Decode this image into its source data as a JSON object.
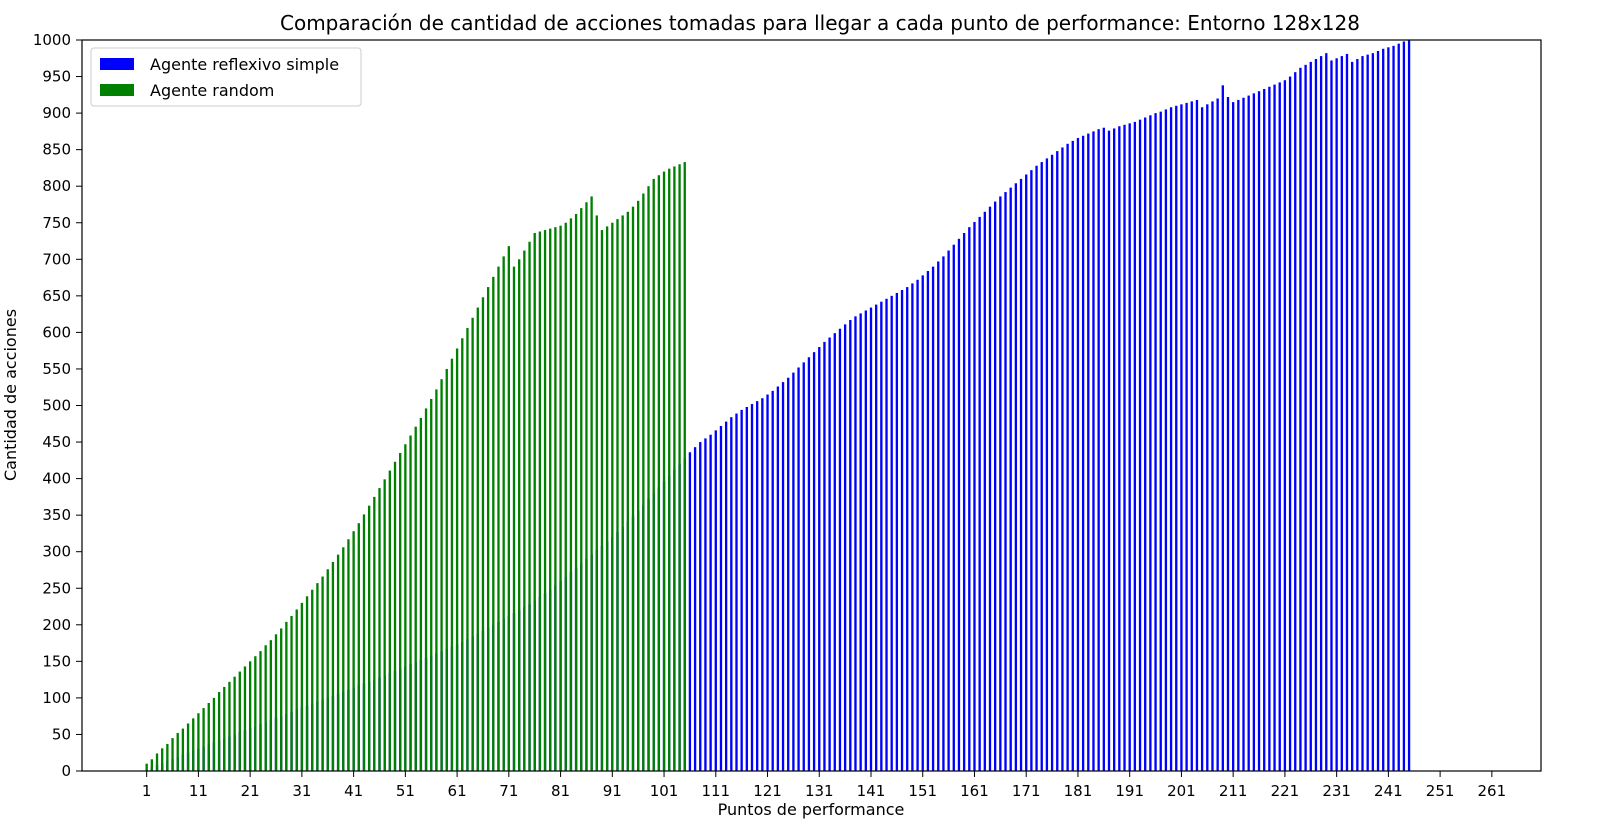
{
  "chart_data": {
    "type": "bar",
    "title": "Comparación de cantidad de acciones tomadas para llegar a cada punto de performance: Entorno 128x128",
    "xlabel": "Puntos de performance",
    "ylabel": "Cantidad de acciones",
    "xlim": [
      -11.5,
      270.5
    ],
    "ylim": [
      0,
      1000
    ],
    "x_ticks": [
      1,
      11,
      21,
      31,
      41,
      51,
      61,
      71,
      81,
      91,
      101,
      111,
      121,
      131,
      141,
      151,
      161,
      171,
      181,
      191,
      201,
      211,
      221,
      231,
      241,
      251,
      261
    ],
    "y_ticks": [
      0,
      50,
      100,
      150,
      200,
      250,
      300,
      350,
      400,
      450,
      500,
      550,
      600,
      650,
      700,
      750,
      800,
      850,
      900,
      950,
      1000
    ],
    "grid": false,
    "legend_position": "top-left",
    "series": [
      {
        "name": "Agente reflexivo simple",
        "color": "#0000ff",
        "x_start": 1,
        "values": [
          2,
          5,
          8,
          11,
          14,
          16,
          19,
          22,
          25,
          28,
          30,
          33,
          36,
          39,
          42,
          44,
          47,
          50,
          53,
          56,
          59,
          61,
          64,
          67,
          70,
          73,
          75,
          78,
          81,
          84,
          87,
          89,
          92,
          95,
          98,
          100,
          103,
          106,
          108,
          111,
          114,
          117,
          120,
          122,
          125,
          128,
          131,
          134,
          137,
          140,
          143,
          146,
          149,
          152,
          155,
          158,
          161,
          164,
          167,
          170,
          173,
          176,
          180,
          184,
          188,
          192,
          196,
          200,
          204,
          208,
          212,
          216,
          220,
          224,
          228,
          233,
          238,
          243,
          248,
          254,
          260,
          266,
          272,
          278,
          284,
          290,
          296,
          302,
          308,
          314,
          320,
          327,
          334,
          341,
          348,
          356,
          364,
          372,
          380,
          388,
          396,
          404,
          412,
          420,
          428,
          436,
          443,
          450,
          455,
          460,
          466,
          472,
          478,
          484,
          489,
          494,
          498,
          502,
          506,
          510,
          515,
          520,
          526,
          532,
          538,
          545,
          552,
          559,
          566,
          573,
          580,
          587,
          593,
          599,
          605,
          611,
          617,
          622,
          626,
          630,
          634,
          638,
          642,
          646,
          650,
          654,
          658,
          662,
          667,
          672,
          678,
          684,
          690,
          697,
          704,
          712,
          720,
          728,
          736,
          744,
          751,
          758,
          765,
          772,
          779,
          786,
          792,
          798,
          804,
          810,
          816,
          822,
          828,
          833,
          838,
          843,
          848,
          853,
          858,
          862,
          866,
          869,
          872,
          875,
          878,
          880,
          876,
          879,
          882,
          884,
          886,
          888,
          891,
          894,
          897,
          900,
          902,
          905,
          908,
          910,
          912,
          914,
          916,
          918,
          908,
          912,
          916,
          920,
          938,
          922,
          915,
          918,
          921,
          924,
          927,
          930,
          933,
          936,
          939,
          942,
          945,
          950,
          956,
          962,
          966,
          970,
          974,
          978,
          982,
          972,
          975,
          978,
          981,
          970,
          974,
          978,
          980,
          982,
          985,
          988,
          990,
          992,
          995,
          998,
          1000
        ]
      },
      {
        "name": "Agente random",
        "color": "#008000",
        "x_start": 1,
        "values": [
          10,
          16,
          24,
          31,
          37,
          45,
          52,
          58,
          65,
          72,
          79,
          86,
          93,
          100,
          108,
          115,
          122,
          129,
          136,
          143,
          150,
          157,
          164,
          172,
          179,
          187,
          195,
          204,
          212,
          221,
          230,
          239,
          248,
          257,
          266,
          276,
          286,
          296,
          306,
          317,
          328,
          339,
          351,
          363,
          375,
          387,
          399,
          411,
          423,
          435,
          447,
          459,
          471,
          483,
          496,
          509,
          522,
          536,
          550,
          564,
          578,
          592,
          606,
          620,
          634,
          648,
          662,
          676,
          690,
          704,
          718,
          690,
          700,
          712,
          724,
          736,
          738,
          740,
          742,
          744,
          746,
          750,
          756,
          762,
          770,
          778,
          786,
          760,
          740,
          745,
          750,
          755,
          760,
          765,
          772,
          780,
          790,
          800,
          810,
          815,
          820,
          824,
          827,
          830,
          833
        ]
      }
    ]
  }
}
